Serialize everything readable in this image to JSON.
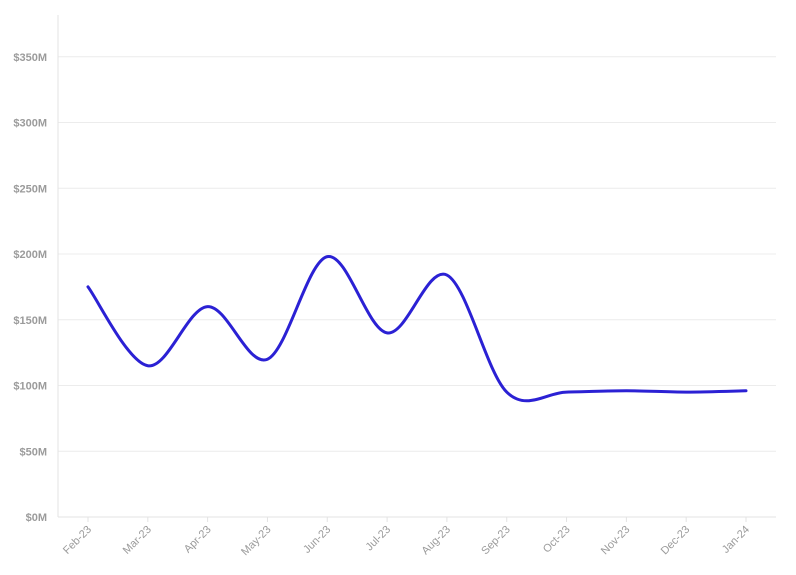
{
  "chart_data": {
    "type": "line",
    "title": "",
    "xlabel": "",
    "ylabel": "",
    "categories": [
      "Feb-23",
      "Mar-23",
      "Apr-23",
      "May-23",
      "Jun-23",
      "Jul-23",
      "Aug-23",
      "Sep-23",
      "Oct-23",
      "Nov-23",
      "Dec-23",
      "Jan-24"
    ],
    "y_tick_labels": [
      "$0M",
      "$50M",
      "$100M",
      "$150M",
      "$200M",
      "$250M",
      "$300M",
      "$350M"
    ],
    "y_ticks": [
      0,
      50,
      100,
      150,
      200,
      250,
      300,
      350
    ],
    "ylim": [
      0,
      380
    ],
    "grid": true,
    "legend": "none",
    "series": [
      {
        "values": [
          175,
          115,
          160,
          120,
          198,
          140,
          184,
          95,
          95,
          96,
          95,
          96
        ],
        "color": "#2b21d4"
      }
    ]
  }
}
